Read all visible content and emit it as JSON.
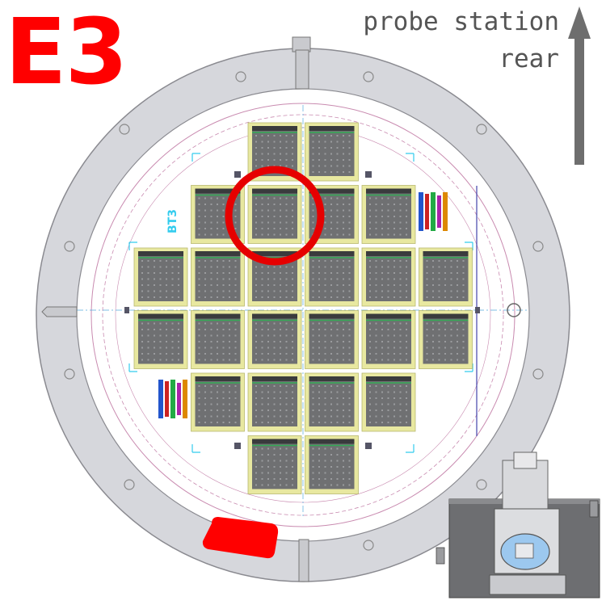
{
  "overlay_label": "E3",
  "orientation": {
    "line1": "probe station",
    "line2": "rear"
  },
  "wafer_label": "BT3",
  "colors": {
    "label_red": "#ff0000",
    "highlight_ring": "#e60000",
    "chuck_ring": "#d6d7dc",
    "tile_body": "#6f7072",
    "tile_border": "#e8e8a0",
    "arrow": "#6e6e6e",
    "cyan_marks": "#33ccee"
  },
  "icons": {
    "orientation": "up-arrow-icon",
    "inset": "probe-station-thumbnail",
    "notch": "red-notch-marker"
  },
  "die_grid": {
    "rows": [
      {
        "cols": [
          3,
          4
        ]
      },
      {
        "cols": [
          2,
          3,
          4,
          5
        ]
      },
      {
        "cols": [
          1,
          2,
          3,
          4,
          5,
          6
        ]
      },
      {
        "cols": [
          1,
          2,
          3,
          4,
          5,
          6
        ]
      },
      {
        "cols": [
          2,
          3,
          4,
          5
        ]
      },
      {
        "cols": [
          3,
          4
        ]
      }
    ],
    "highlighted": {
      "row": 1,
      "col": 3
    }
  }
}
